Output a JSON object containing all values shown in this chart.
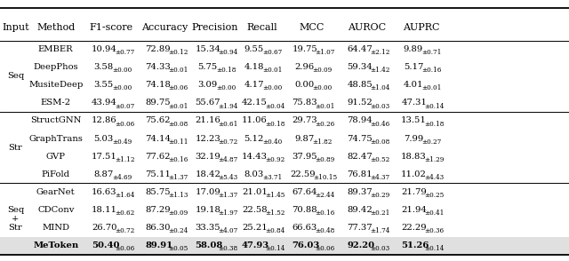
{
  "columns": [
    "Input",
    "Method",
    "F1-score",
    "Accuracy",
    "Precision",
    "Recall",
    "MCC",
    "AUROC",
    "AUPRC"
  ],
  "rows": [
    {
      "input": "Seq",
      "method": "EMBER",
      "f1": "10.94",
      "f1e": "0.77",
      "acc": "72.89",
      "ace": "0.12",
      "pre": "15.34",
      "pree": "0.94",
      "rec": "9.55",
      "rece": "0.67",
      "mcc": "19.75",
      "mcce": "1.07",
      "auroc": "64.47",
      "auroce": "2.12",
      "auprc": "9.89",
      "auprce": "0.71",
      "bold": false
    },
    {
      "input": "Seq",
      "method": "DeepPhos",
      "f1": "3.58",
      "f1e": "0.00",
      "acc": "74.33",
      "ace": "0.01",
      "pre": "5.75",
      "pree": "0.18",
      "rec": "4.18",
      "rece": "0.01",
      "mcc": "2.96",
      "mcce": "0.09",
      "auroc": "59.34",
      "auroce": "1.42",
      "auprc": "5.17",
      "auprce": "0.16",
      "bold": false
    },
    {
      "input": "Seq",
      "method": "MusiteDeep",
      "f1": "3.55",
      "f1e": "0.00",
      "acc": "74.18",
      "ace": "0.06",
      "pre": "3.09",
      "pree": "0.00",
      "rec": "4.17",
      "rece": "0.00",
      "mcc": "0.00",
      "mcce": "0.00",
      "auroc": "48.85",
      "auroce": "1.04",
      "auprc": "4.01",
      "auprce": "0.01",
      "bold": false
    },
    {
      "input": "Seq",
      "method": "ESM-2",
      "f1": "43.94",
      "f1e": "0.07",
      "acc": "89.75",
      "ace": "0.01",
      "pre": "55.67",
      "pree": "1.94",
      "rec": "42.15",
      "rece": "0.04",
      "mcc": "75.83",
      "mcce": "0.01",
      "auroc": "91.52",
      "auroce": "0.03",
      "auprc": "47.31",
      "auprce": "0.14",
      "bold": false
    },
    {
      "input": "Str",
      "method": "StructGNN",
      "f1": "12.86",
      "f1e": "0.06",
      "acc": "75.62",
      "ace": "0.08",
      "pre": "21.16",
      "pree": "0.61",
      "rec": "11.06",
      "rece": "0.18",
      "mcc": "29.73",
      "mcce": "0.26",
      "auroc": "78.94",
      "auroce": "0.46",
      "auprc": "13.51",
      "auprce": "0.18",
      "bold": false
    },
    {
      "input": "Str",
      "method": "GraphTrans",
      "f1": "5.03",
      "f1e": "0.49",
      "acc": "74.14",
      "ace": "0.11",
      "pre": "12.23",
      "pree": "0.72",
      "rec": "5.12",
      "rece": "0.40",
      "mcc": "9.87",
      "mcce": "1.82",
      "auroc": "74.75",
      "auroce": "0.08",
      "auprc": "7.99",
      "auprce": "0.27",
      "bold": false
    },
    {
      "input": "Str",
      "method": "GVP",
      "f1": "17.51",
      "f1e": "1.12",
      "acc": "77.62",
      "ace": "0.16",
      "pre": "32.19",
      "pree": "4.87",
      "rec": "14.43",
      "rece": "0.92",
      "mcc": "37.95",
      "mcce": "0.89",
      "auroc": "82.47",
      "auroce": "0.52",
      "auprc": "18.83",
      "auprce": "1.29",
      "bold": false
    },
    {
      "input": "Str",
      "method": "PiFold",
      "f1": "8.87",
      "f1e": "4.69",
      "acc": "75.11",
      "ace": "1.37",
      "pre": "18.42",
      "pree": "5.43",
      "rec": "8.03",
      "rece": "3.71",
      "mcc": "22.59",
      "mcce": "10.15",
      "auroc": "76.81",
      "auroce": "4.37",
      "auprc": "11.02",
      "auprce": "4.43",
      "bold": false
    },
    {
      "input": "Seq+Str",
      "method": "GearNet",
      "f1": "16.63",
      "f1e": "1.64",
      "acc": "85.75",
      "ace": "1.13",
      "pre": "17.09",
      "pree": "1.37",
      "rec": "21.01",
      "rece": "1.45",
      "mcc": "67.64",
      "mcce": "2.44",
      "auroc": "89.37",
      "auroce": "0.29",
      "auprc": "21.79",
      "auprce": "0.25",
      "bold": false
    },
    {
      "input": "Seq+Str",
      "method": "CDConv",
      "f1": "18.11",
      "f1e": "0.62",
      "acc": "87.29",
      "ace": "0.09",
      "pre": "19.18",
      "pree": "1.97",
      "rec": "22.58",
      "rece": "1.52",
      "mcc": "70.88",
      "mcce": "0.16",
      "auroc": "89.42",
      "auroce": "0.21",
      "auprc": "21.94",
      "auprce": "0.41",
      "bold": false
    },
    {
      "input": "Seq+Str",
      "method": "MIND",
      "f1": "26.70",
      "f1e": "0.72",
      "acc": "86.30",
      "ace": "0.24",
      "pre": "33.35",
      "pree": "4.07",
      "rec": "25.21",
      "rece": "0.84",
      "mcc": "66.63",
      "mcce": "0.48",
      "auroc": "77.37",
      "auroce": "1.74",
      "auprc": "22.29",
      "auprce": "0.36",
      "bold": false
    },
    {
      "input": "Seq+Str",
      "method": "MeToken",
      "f1": "50.40",
      "f1e": "0.06",
      "acc": "89.91",
      "ace": "0.05",
      "pre": "58.08",
      "pree": "0.38",
      "rec": "47.93",
      "rece": "0.14",
      "mcc": "76.03",
      "mcce": "0.06",
      "auroc": "92.20",
      "auroce": "0.03",
      "auprc": "51.26",
      "auprce": "0.14",
      "bold": true
    }
  ],
  "highlight_color": "#e0e0e0",
  "col_xpos": {
    "Input": 0.027,
    "Method": 0.098,
    "F1-score": 0.196,
    "Accuracy": 0.29,
    "Precision": 0.378,
    "Recall": 0.46,
    "MCC": 0.548,
    "AUROC": 0.645,
    "AUPRC": 0.74
  },
  "font_size": 7.2,
  "sub_font_size": 5.2,
  "header_font_size": 8.0,
  "group_info": [
    {
      "label": "Seq",
      "start": 0,
      "end": 3
    },
    {
      "label": "Str",
      "start": 4,
      "end": 7
    },
    {
      "label": "Seq\n+\nStr",
      "start": 8,
      "end": 11
    }
  ],
  "group_sep_after": [
    3,
    7
  ]
}
